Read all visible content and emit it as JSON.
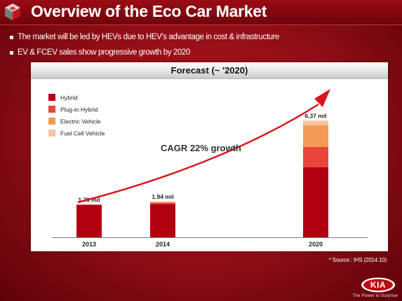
{
  "slide": {
    "title": "Overview of the Eco Car Market",
    "bullets": [
      "The market will be led by HEVs due to HEV's advantage in cost & infrastructure",
      "EV & FCEV sales show progressive growth by 2020"
    ],
    "source": "* Source : IHS (2014.10)",
    "slogan": "The Power to Surprise",
    "brand": "KIA"
  },
  "chart_data": {
    "type": "bar",
    "stacked": true,
    "title": "Forecast (~ '2020)",
    "categories": [
      "2013",
      "2014",
      "2020"
    ],
    "totals": [
      "1.78 mil",
      "1.94 mil",
      "6.37 mil"
    ],
    "total_values": [
      1.78,
      1.94,
      6.37
    ],
    "series": [
      {
        "name": "Hybrid",
        "color": "#b30010",
        "values": [
          1.78,
          1.82,
          3.83
        ]
      },
      {
        "name": "Plug-in Hybrid",
        "color": "#e8453c",
        "values": [
          0.0,
          0.06,
          1.1
        ]
      },
      {
        "name": "Electric Vehicle",
        "color": "#f19a55",
        "values": [
          0.0,
          0.06,
          1.18
        ]
      },
      {
        "name": "Fuel Cell Vehicle",
        "color": "#f7c3a3",
        "values": [
          0.0,
          0.0,
          0.26
        ]
      }
    ],
    "annotation": "CAGR 22% growth",
    "ylim": [
      0,
      6.8
    ],
    "legend_position": "top-left"
  },
  "colors": {
    "brand_red": "#8e0d15",
    "arrow": "#d9161f"
  }
}
